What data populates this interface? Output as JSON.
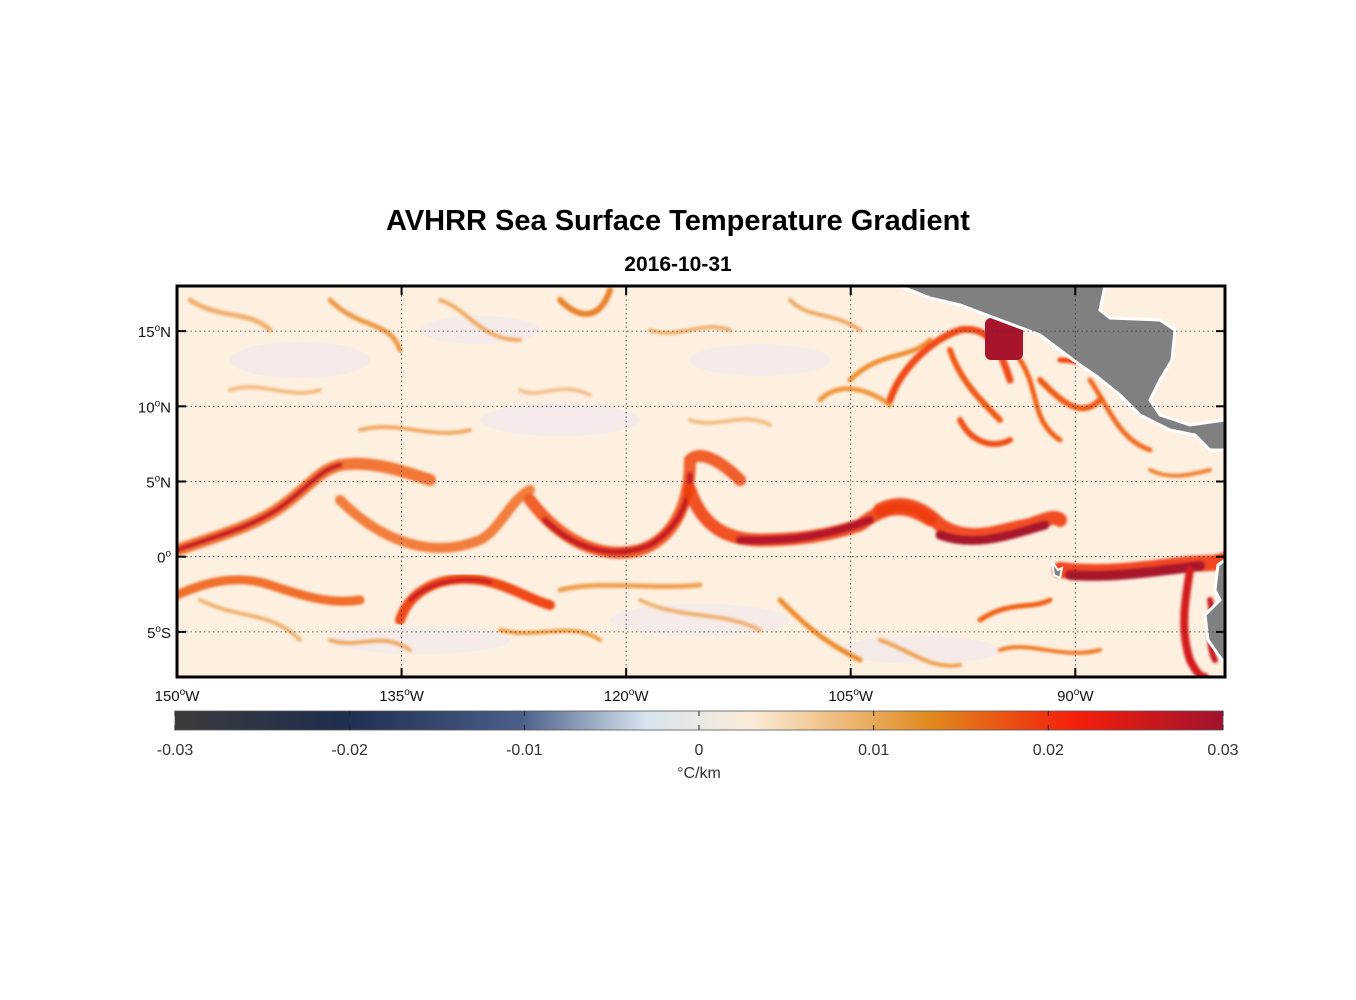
{
  "title": "AVHRR Sea Surface Temperature Gradient",
  "subtitle": "2016-10-31",
  "map": {
    "lon_range": [
      -150,
      -80
    ],
    "lat_range": [
      -8,
      18
    ],
    "x_ticks": [
      {
        "lon": -150,
        "num": "150",
        "hemi": "W"
      },
      {
        "lon": -135,
        "num": "135",
        "hemi": "W"
      },
      {
        "lon": -120,
        "num": "120",
        "hemi": "W"
      },
      {
        "lon": -105,
        "num": "105",
        "hemi": "W"
      },
      {
        "lon": -90,
        "num": "90",
        "hemi": "W"
      }
    ],
    "y_ticks": [
      {
        "lat": 15,
        "num": "15",
        "hemi": "N"
      },
      {
        "lat": 10,
        "num": "10",
        "hemi": "N"
      },
      {
        "lat": 5,
        "num": "5",
        "hemi": "N"
      },
      {
        "lat": 0,
        "num": "0",
        "hemi": ""
      },
      {
        "lat": -5,
        "num": "5",
        "hemi": "S"
      }
    ],
    "degree_symbol": "o",
    "gridlines": "dotted",
    "land_color": "#808080",
    "ocean_background": "#fdf0e0"
  },
  "colorbar": {
    "min": -0.03,
    "max": 0.03,
    "tick_labels": [
      "-0.03",
      "-0.02",
      "-0.01",
      "0",
      "0.01",
      "0.02",
      "0.03"
    ],
    "tick_values": [
      -0.03,
      -0.02,
      -0.01,
      0,
      0.01,
      0.02,
      0.03
    ],
    "unit": "°C/km",
    "colors": [
      "#3b3b3b",
      "#1f2d4f",
      "#4a5f8a",
      "#d8e4ef",
      "#fbecd8",
      "#e08a1e",
      "#f51e0a",
      "#a0132e"
    ]
  }
}
